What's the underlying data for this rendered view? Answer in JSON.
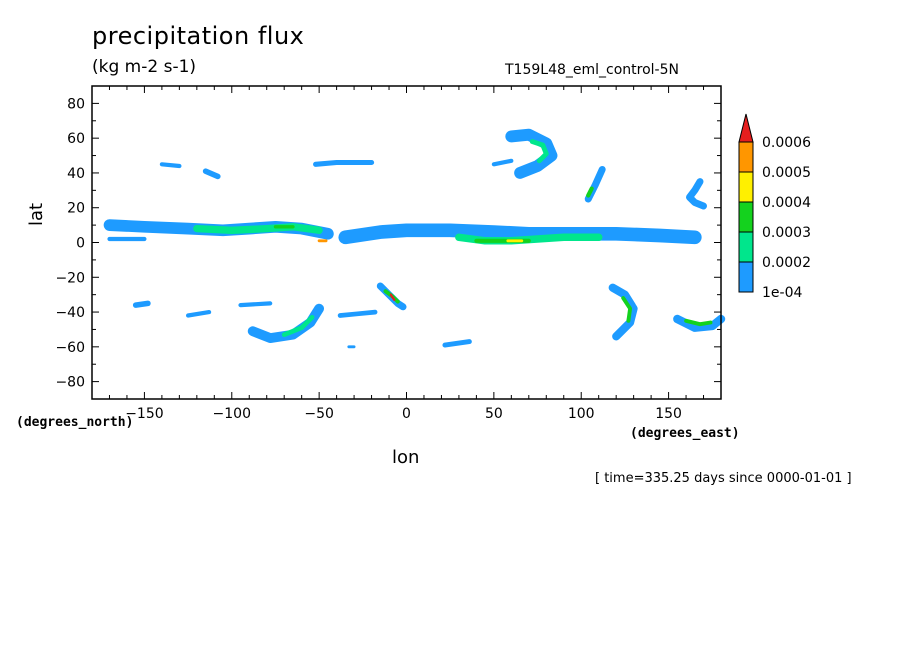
{
  "title": "precipitation flux",
  "units": "(kg m-2 s-1)",
  "run_name": "T159L48_eml_control-5N",
  "timestamp": "[ time=335.25 days since 0000-01-01 ]",
  "colors": {
    "c1": "#1e9bff",
    "c2": "#00e68c",
    "c3": "#14d21e",
    "c4": "#fff000",
    "c5": "#ff9600",
    "c6": "#e61e1e"
  },
  "chart_data": {
    "type": "heatmap",
    "xlabel": "lon",
    "ylabel": "lat",
    "x_units": "(degrees_east)",
    "y_units": "(degrees_north)",
    "xlim": [
      -180,
      180
    ],
    "ylim": [
      -90,
      90
    ],
    "x_ticks": [
      -150,
      -100,
      -50,
      0,
      50,
      100,
      150
    ],
    "y_ticks": [
      -80,
      -60,
      -40,
      -20,
      0,
      20,
      40,
      60,
      80
    ],
    "grid": false,
    "colorbar": {
      "position": "right",
      "labels": [
        "1e-04",
        "0.0002",
        "0.0003",
        "0.0004",
        "0.0005",
        "0.0006"
      ],
      "levels": [
        0.0001,
        0.0002,
        0.0003,
        0.0004,
        0.0005,
        0.0006
      ]
    },
    "features": [
      {
        "lon": [
          -35,
          -15,
          0,
          25,
          50,
          70,
          95,
          120,
          145,
          165
        ],
        "lat": [
          3,
          6,
          7,
          7,
          6,
          5,
          5,
          5,
          4,
          3
        ],
        "widths": [
          4,
          5,
          4,
          5,
          6,
          6,
          5,
          5,
          5,
          4
        ],
        "level": 1
      },
      {
        "lon": [
          -170,
          -150,
          -125,
          -105,
          -90,
          -75,
          -60,
          -45
        ],
        "lat": [
          10,
          9,
          8,
          7,
          8,
          9,
          8,
          5
        ],
        "widths": [
          2.5,
          3,
          4,
          5,
          5,
          5,
          5,
          4
        ],
        "level": 1
      },
      {
        "lon": [
          -120,
          -100,
          -80,
          -65,
          -50
        ],
        "lat": [
          8,
          7,
          8,
          9,
          7
        ],
        "widths": [
          2,
          2.5,
          3,
          3,
          2.5
        ],
        "level": 2
      },
      {
        "lon": [
          30,
          45,
          60,
          75,
          90,
          110
        ],
        "lat": [
          3,
          1,
          1,
          2,
          3,
          3
        ],
        "widths": [
          2.5,
          3,
          3,
          3,
          2.5,
          2
        ],
        "level": 2
      },
      {
        "lon": [
          40,
          55,
          70
        ],
        "lat": [
          1,
          1,
          1
        ],
        "widths": [
          1.5,
          1.5,
          1.5
        ],
        "level": 3
      },
      {
        "lon": [
          58,
          62,
          66
        ],
        "lat": [
          1,
          1,
          1
        ],
        "widths": [
          1,
          1,
          1
        ],
        "level": 4
      },
      {
        "lon": [
          -75,
          -70,
          -65
        ],
        "lat": [
          9,
          9,
          9
        ],
        "widths": [
          1.2,
          1.2,
          1.2
        ],
        "level": 3
      },
      {
        "lon": [
          -50,
          -48,
          -46
        ],
        "lat": [
          1,
          1,
          1
        ],
        "widths": [
          1,
          1,
          1
        ],
        "level": 5
      },
      {
        "lon": [
          -170,
          -160,
          -150
        ],
        "lat": [
          2,
          2,
          2
        ],
        "widths": [
          1.5,
          1.5,
          1.5
        ],
        "level": 1
      },
      {
        "lon": [
          60,
          70,
          80,
          83,
          75,
          65
        ],
        "lat": [
          61,
          62,
          57,
          50,
          44,
          40
        ],
        "widths": [
          3,
          5,
          6,
          5,
          4,
          2.5
        ],
        "level": 1
      },
      {
        "lon": [
          72,
          78,
          80,
          76
        ],
        "lat": [
          58,
          56,
          51,
          47
        ],
        "widths": [
          1.5,
          2,
          2,
          1.5
        ],
        "level": 2
      },
      {
        "lon": [
          104,
          108,
          112
        ],
        "lat": [
          25,
          33,
          42
        ],
        "widths": [
          2.5,
          3,
          2
        ],
        "level": 1
      },
      {
        "lon": [
          104,
          106
        ],
        "lat": [
          27,
          31
        ],
        "widths": [
          1.5,
          1.5
        ],
        "level": 3
      },
      {
        "lon": [
          168,
          165,
          162,
          165,
          170
        ],
        "lat": [
          35,
          30,
          26,
          23,
          21
        ],
        "widths": [
          2,
          2.5,
          3,
          3,
          2
        ],
        "level": 1
      },
      {
        "lon": [
          -52,
          -40,
          -20
        ],
        "lat": [
          45,
          46,
          46
        ],
        "widths": [
          1.5,
          2,
          2
        ],
        "level": 1
      },
      {
        "lon": [
          50,
          60
        ],
        "lat": [
          45,
          47
        ],
        "widths": [
          1.5,
          1.5
        ],
        "level": 1
      },
      {
        "lon": [
          -115,
          -108
        ],
        "lat": [
          41,
          38
        ],
        "widths": [
          2,
          2
        ],
        "level": 1
      },
      {
        "lon": [
          -140,
          -130
        ],
        "lat": [
          45,
          44
        ],
        "widths": [
          1.5,
          1.5
        ],
        "level": 1
      },
      {
        "lon": [
          -88,
          -78,
          -65,
          -55,
          -50
        ],
        "lat": [
          -51,
          -55,
          -53,
          -46,
          -38
        ],
        "widths": [
          3,
          4,
          4,
          3.5,
          3
        ],
        "level": 1
      },
      {
        "lon": [
          -70,
          -60,
          -54
        ],
        "lat": [
          -53,
          -49,
          -43
        ],
        "widths": [
          1.5,
          2,
          1.5
        ],
        "level": 2
      },
      {
        "lon": [
          -15,
          -10,
          -5,
          -2
        ],
        "lat": [
          -25,
          -30,
          -35,
          -37
        ],
        "widths": [
          2,
          3,
          3,
          2
        ],
        "level": 1
      },
      {
        "lon": [
          -12,
          -8,
          -5
        ],
        "lat": [
          -28,
          -31,
          -34
        ],
        "widths": [
          1.5,
          1.5,
          1.2
        ],
        "level": 3
      },
      {
        "lon": [
          -9,
          -7
        ],
        "lat": [
          -30,
          -33
        ],
        "widths": [
          0.8,
          0.8
        ],
        "level": 6
      },
      {
        "lon": [
          -38,
          -28,
          -18
        ],
        "lat": [
          -42,
          -41,
          -40
        ],
        "widths": [
          1.5,
          2,
          1.5
        ],
        "level": 1
      },
      {
        "lon": [
          118,
          125,
          130,
          128,
          120
        ],
        "lat": [
          -26,
          -30,
          -38,
          -46,
          -54
        ],
        "widths": [
          2.5,
          3,
          3.5,
          3,
          2.5
        ],
        "level": 1
      },
      {
        "lon": [
          124,
          128,
          127
        ],
        "lat": [
          -32,
          -38,
          -45
        ],
        "widths": [
          1.5,
          1.5,
          1.2
        ],
        "level": 3
      },
      {
        "lon": [
          155,
          165,
          175,
          180
        ],
        "lat": [
          -44,
          -49,
          -48,
          -44
        ],
        "widths": [
          3,
          3.5,
          3,
          2.5
        ],
        "level": 1
      },
      {
        "lon": [
          160,
          168,
          174
        ],
        "lat": [
          -45,
          -47,
          -46
        ],
        "widths": [
          1.5,
          1.5,
          1.2
        ],
        "level": 3
      },
      {
        "lon": [
          -155,
          -148
        ],
        "lat": [
          -36,
          -35
        ],
        "widths": [
          2,
          2
        ],
        "level": 1
      },
      {
        "lon": [
          -125,
          -113
        ],
        "lat": [
          -42,
          -40
        ],
        "widths": [
          1.5,
          1.5
        ],
        "level": 1
      },
      {
        "lon": [
          -95,
          -78
        ],
        "lat": [
          -36,
          -35
        ],
        "widths": [
          1.5,
          1.5
        ],
        "level": 1
      },
      {
        "lon": [
          22,
          36
        ],
        "lat": [
          -59,
          -57
        ],
        "widths": [
          1.5,
          2
        ],
        "level": 1
      },
      {
        "lon": [
          -33,
          -30
        ],
        "lat": [
          -60,
          -60
        ],
        "widths": [
          1,
          1
        ],
        "level": 1
      }
    ]
  }
}
